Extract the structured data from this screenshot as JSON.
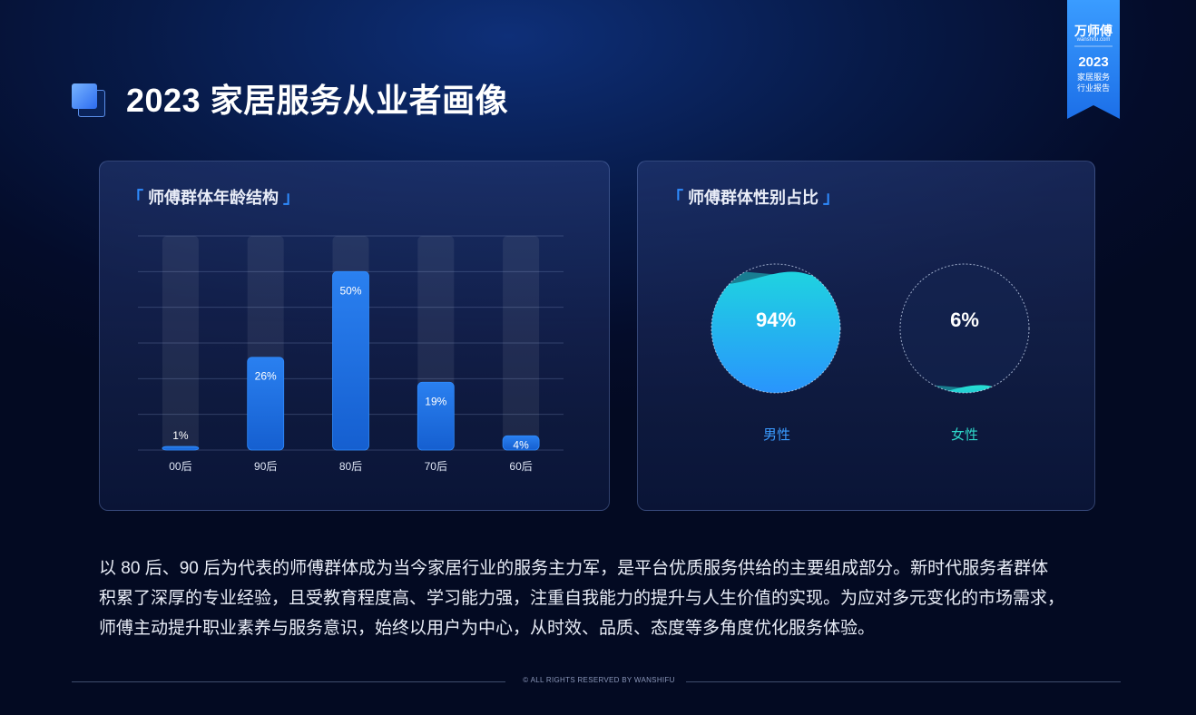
{
  "page": {
    "title": "2023 家居服务从业者画像",
    "brand": "万师傅",
    "brand_sub": "wanshifu.com",
    "report_year": "2023",
    "report_sub": "家居服务\n行业报告",
    "paragraph": "以 80 后、90 后为代表的师傅群体成为当今家居行业的服务主力军，是平台优质服务供给的主要组成部分。新时代服务者群体\n积累了深厚的专业经验，且受教育程度高、学习能力强，注重自我能力的提升与人生价值的实现。为应对多元变化的市场需求，\n师傅主动提升职业素养与服务意识，始终以用户为中心，从时效、品质、态度等多角度优化服务体验。",
    "copyright": "© ALL RIGHTS RESERVED BY WANSHIFU"
  },
  "panels": {
    "age": {
      "title": "师傅群体年龄结构",
      "open": "「",
      "close": "」"
    },
    "gender": {
      "title": "师傅群体性别占比",
      "open": "「",
      "close": "」"
    }
  },
  "colors": {
    "accent": "#2e8cff",
    "bar": "#1f6fe0",
    "male": "#2aa8ff",
    "female": "#2de0d0",
    "male_label": "#3a9bff",
    "female_label": "#2ed6c8"
  },
  "chart_data": [
    {
      "type": "bar",
      "categories": [
        "00后",
        "90后",
        "80后",
        "70后",
        "60后"
      ],
      "values": [
        1,
        26,
        50,
        19,
        4
      ],
      "labels": [
        "1%",
        "26%",
        "50%",
        "19%",
        "4%"
      ],
      "ylim": [
        0,
        60
      ],
      "title": "师傅群体年龄结构"
    },
    {
      "type": "pie",
      "categories": [
        "男性",
        "女性"
      ],
      "values": [
        94,
        6
      ],
      "labels": [
        "94%",
        "6%"
      ],
      "title": "师傅群体性别占比"
    }
  ]
}
